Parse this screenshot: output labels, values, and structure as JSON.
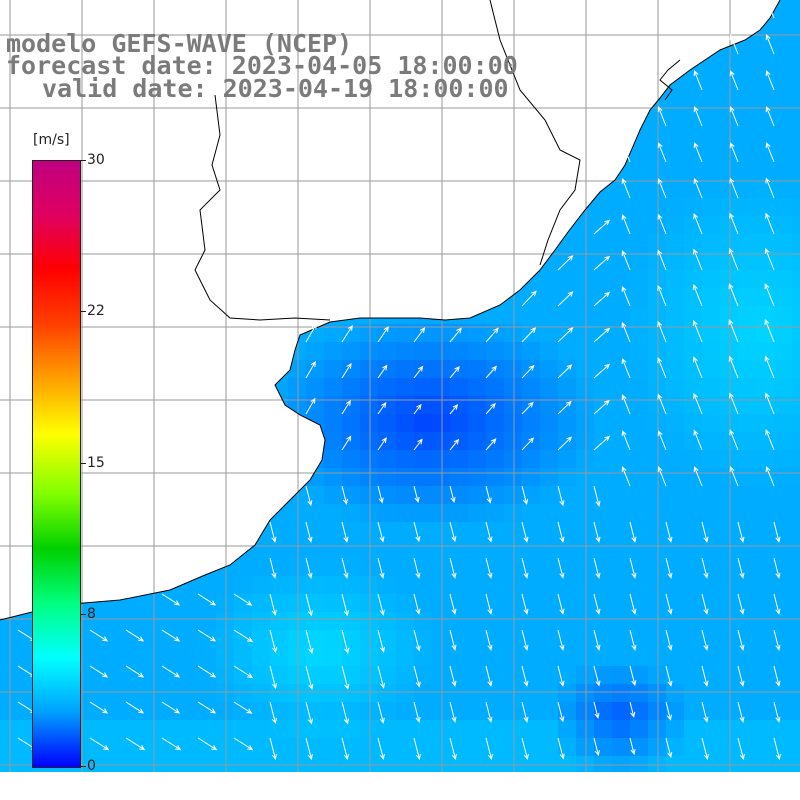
{
  "title": {
    "line1": "modelo GEFS-WAVE (NCEP)",
    "line2": "forecast date: 2023-04-05 18:00:00",
    "line3": "valid date: 2023-04-19 18:00:00"
  },
  "colorbar": {
    "unit": "[m/s]",
    "min": 0,
    "max": 30,
    "ticks": [
      "30",
      "22",
      "15",
      "8",
      "0"
    ],
    "colors": [
      "#0000ff",
      "#00a0ff",
      "#00ffff",
      "#00ff80",
      "#00d000",
      "#80ff00",
      "#ffff00",
      "#ffa000",
      "#ff4000",
      "#ff0000",
      "#e00060",
      "#c00080"
    ]
  },
  "map": {
    "field": "wind speed",
    "land_color": "#ffffff",
    "coast_color": "#000000",
    "grid_color": "#9a9a9a",
    "vector_color": "#ffffff"
  }
}
